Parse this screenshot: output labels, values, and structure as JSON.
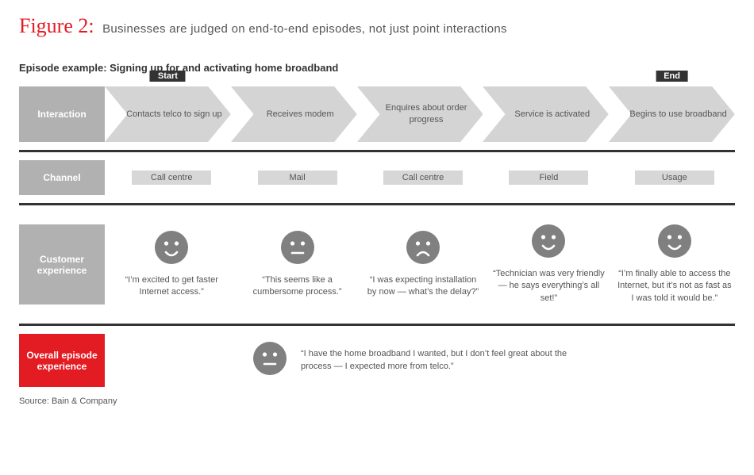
{
  "figure": {
    "label": "Figure 2:",
    "title": "Businesses are judged on end-to-end episodes, not just point interactions"
  },
  "subtitle": "Episode example: Signing up for and activating home broadband",
  "colors": {
    "accent_red": "#e31b23",
    "grey_box": "#b1b1b1",
    "chevron_fill": "#d4d4d4",
    "chip_fill": "#d7d7d7",
    "face_fill": "#808080",
    "divider": "#333333",
    "tag_bg": "#333333",
    "background": "#ffffff"
  },
  "rows": {
    "interaction": {
      "label": "Interaction"
    },
    "channel": {
      "label": "Channel"
    },
    "cx": {
      "label": "Customer experience"
    },
    "overall": {
      "label": "Overall episode experience"
    }
  },
  "tags": {
    "start": "Start",
    "end": "End"
  },
  "steps": [
    {
      "interaction": "Contacts telco to sign up",
      "channel": "Call centre",
      "mood": "happy",
      "quote": "“I’m excited to get faster Internet access.”",
      "tag": "start"
    },
    {
      "interaction": "Receives modem",
      "channel": "Mail",
      "mood": "neutral",
      "quote": "“This seems like a cumbersome process.”"
    },
    {
      "interaction": "Enquires about order progress",
      "channel": "Call centre",
      "mood": "sad",
      "quote": "“I was expecting installation by now — what’s the delay?”"
    },
    {
      "interaction": "Service is activated",
      "channel": "Field",
      "mood": "happy",
      "quote": "“Technician was very friendly — he says everything’s all set!”"
    },
    {
      "interaction": "Begins to use broadband",
      "channel": "Usage",
      "mood": "happy",
      "quote": "“I’m finally able to access the Internet, but it’s not as fast as I was told it would be.”",
      "tag": "end"
    }
  ],
  "overall": {
    "mood": "neutral",
    "quote": "“I have the home broadband I wanted, but I don’t feel great about the process — I expected more from telco.”"
  },
  "source": "Source: Bain & Company"
}
